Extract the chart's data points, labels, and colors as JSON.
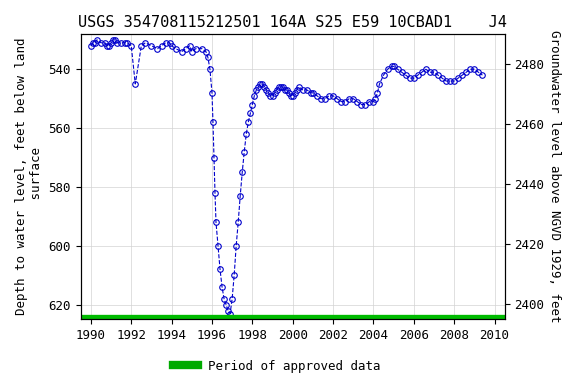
{
  "title": "USGS 354708115212501 164A S25 E59 10CBAD1    J4",
  "xlabel": "",
  "ylabel_left": "Depth to water level, feet below land\n surface",
  "ylabel_right": "Groundwater level above NGVD 1929, feet",
  "xlim": [
    1989.5,
    2010.5
  ],
  "ylim_left": [
    625,
    528
  ],
  "ylim_right": [
    2395,
    2490
  ],
  "xticks": [
    1990,
    1992,
    1994,
    1996,
    1998,
    2000,
    2002,
    2004,
    2006,
    2008,
    2010
  ],
  "yticks_left": [
    540,
    560,
    580,
    600,
    620
  ],
  "legend_label": "Period of approved data",
  "legend_color": "#00aa00",
  "bg_color": "#ffffff",
  "line_color": "#0000cc",
  "marker_color": "#0000cc",
  "approved_bar_color": "#00bb00",
  "approved_bar_start": 1990,
  "approved_bar_end": 2009.5,
  "title_fontsize": 11,
  "axis_fontsize": 9,
  "tick_fontsize": 9,
  "data_x": [
    1990.0,
    1990.1,
    1990.2,
    1990.3,
    1990.5,
    1990.7,
    1990.8,
    1990.9,
    1991.0,
    1991.1,
    1991.2,
    1991.3,
    1991.5,
    1991.7,
    1991.8,
    1992.0,
    1992.2,
    1992.5,
    1992.7,
    1993.0,
    1993.3,
    1993.5,
    1993.7,
    1993.9,
    1994.0,
    1994.2,
    1994.5,
    1994.7,
    1994.9,
    1995.0,
    1995.2,
    1995.5,
    1995.7,
    1995.8,
    1995.9,
    1996.0,
    1996.05,
    1996.1,
    1996.15,
    1996.2,
    1996.3,
    1996.4,
    1996.5,
    1996.6,
    1996.7,
    1996.8,
    1996.9,
    1997.0,
    1997.1,
    1997.2,
    1997.3,
    1997.4,
    1997.5,
    1997.6,
    1997.7,
    1997.8,
    1997.9,
    1998.0,
    1998.1,
    1998.2,
    1998.3,
    1998.4,
    1998.5,
    1998.6,
    1998.7,
    1998.8,
    1998.9,
    1999.0,
    1999.1,
    1999.2,
    1999.3,
    1999.4,
    1999.5,
    1999.6,
    1999.7,
    1999.8,
    1999.9,
    2000.0,
    2000.1,
    2000.2,
    2000.3,
    2000.5,
    2000.7,
    2000.9,
    2001.0,
    2001.2,
    2001.4,
    2001.6,
    2001.8,
    2002.0,
    2002.2,
    2002.4,
    2002.6,
    2002.8,
    2003.0,
    2003.2,
    2003.4,
    2003.6,
    2003.8,
    2004.0,
    2004.1,
    2004.2,
    2004.3,
    2004.5,
    2004.7,
    2004.9,
    2005.0,
    2005.2,
    2005.4,
    2005.6,
    2005.8,
    2006.0,
    2006.2,
    2006.4,
    2006.6,
    2006.8,
    2007.0,
    2007.2,
    2007.4,
    2007.6,
    2007.8,
    2008.0,
    2008.2,
    2008.4,
    2008.6,
    2008.8,
    2009.0,
    2009.2,
    2009.4
  ],
  "data_y": [
    532,
    531,
    531,
    530,
    531,
    531,
    532,
    532,
    531,
    530,
    530,
    531,
    531,
    531,
    531,
    532,
    545,
    532,
    531,
    532,
    533,
    532,
    531,
    531,
    532,
    533,
    534,
    533,
    532,
    534,
    533,
    533,
    534,
    536,
    540,
    548,
    558,
    570,
    582,
    592,
    600,
    608,
    614,
    618,
    620,
    622,
    623,
    618,
    610,
    600,
    592,
    583,
    575,
    568,
    562,
    558,
    555,
    552,
    549,
    547,
    546,
    545,
    545,
    546,
    547,
    548,
    549,
    549,
    548,
    547,
    546,
    546,
    546,
    547,
    547,
    548,
    549,
    549,
    548,
    547,
    546,
    547,
    547,
    548,
    548,
    549,
    550,
    550,
    549,
    549,
    550,
    551,
    551,
    550,
    550,
    551,
    552,
    552,
    551,
    551,
    550,
    548,
    545,
    542,
    540,
    539,
    539,
    540,
    541,
    542,
    543,
    543,
    542,
    541,
    540,
    541,
    541,
    542,
    543,
    544,
    544,
    544,
    543,
    542,
    541,
    540,
    540,
    541,
    542
  ]
}
